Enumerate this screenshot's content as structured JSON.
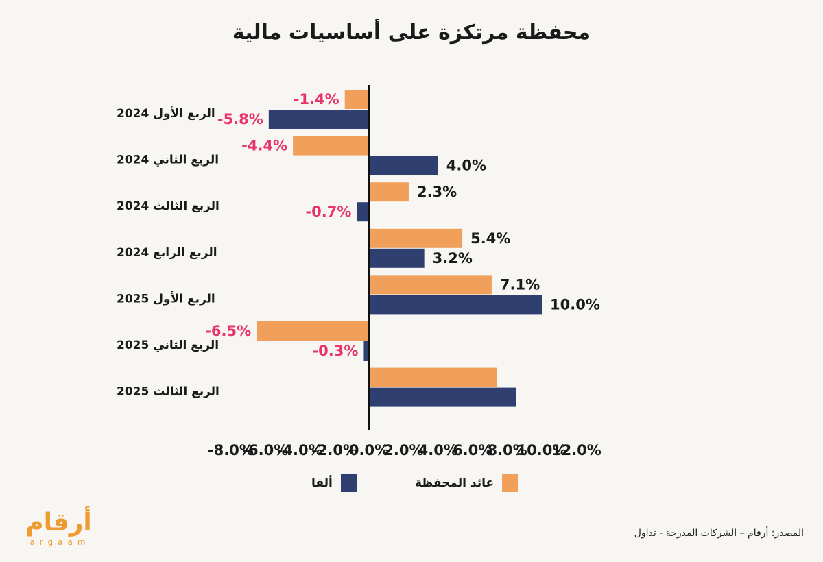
{
  "title": "محفظة مرتكزة على أساسيات مالية",
  "legend": {
    "alpha": "ألفا",
    "portfolio": "عائد المحفظة"
  },
  "colors": {
    "alpha": "#2f3f6f",
    "portfolio": "#f0a05a",
    "negative_label": "#e8336b",
    "positive_label": "#1a1a1a",
    "background": "#f7f6f3"
  },
  "logo": {
    "arabic": "أرقام",
    "latin": "argaam"
  },
  "source": "المصدر: أرقام – الشركات المدرجة - تداول",
  "chart_data": {
    "type": "bar",
    "orientation": "horizontal",
    "title": "محفظة مرتكزة على أساسيات مالية",
    "categories": [
      "الربع الأول 2024",
      "الربع الثاني 2024",
      "الربع الثالث 2024",
      "الربع الرابع 2024",
      "الربع الأول 2025",
      "الربع الثاني 2025",
      "الربع الثالث 2025"
    ],
    "series": [
      {
        "name": "عائد المحفظة",
        "color": "#f0a05a",
        "values": [
          -1.4,
          -4.4,
          2.3,
          5.4,
          7.1,
          -6.5,
          7.4
        ],
        "labels": [
          "-1.4%",
          "-4.4%",
          "2.3%",
          "5.4%",
          "7.1%",
          "-6.5%",
          ""
        ]
      },
      {
        "name": "ألفا",
        "color": "#2f3f6f",
        "values": [
          -5.8,
          4.0,
          -0.7,
          3.2,
          10.0,
          -0.3,
          8.5
        ],
        "labels": [
          "-5.8%",
          "4.0%",
          "-0.7%",
          "3.2%",
          "10.0%",
          "-0.3%",
          ""
        ]
      }
    ],
    "xlim": [
      -8.0,
      12.0
    ],
    "xticks": [
      "-8.0%",
      "-6.0%",
      "-4.0%",
      "-2.0%",
      "0.0%",
      "2.0%",
      "4.0%",
      "6.0%",
      "8.0%",
      "10.0%",
      "12.0%"
    ],
    "xtick_values": [
      -8,
      -6,
      -4,
      -2,
      0,
      2,
      4,
      6,
      8,
      10,
      12
    ],
    "grid": false,
    "legend_position": "bottom"
  }
}
